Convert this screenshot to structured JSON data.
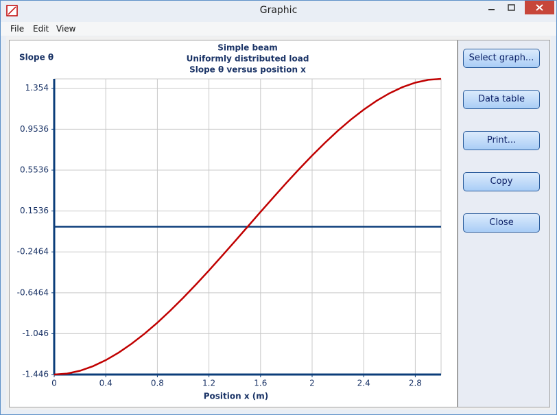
{
  "window": {
    "title": "Graphic"
  },
  "menu": [
    "File",
    "Edit",
    "View"
  ],
  "buttons": [
    "Select graph...",
    "Data table",
    "Print...",
    "Copy",
    "Close"
  ],
  "chart_data": {
    "type": "line",
    "title": [
      "Simple beam",
      "Uniformly distributed load",
      "Slope θ versus position x"
    ],
    "y_label": "Slope θ",
    "x_label": "Position x (m)",
    "x": [
      0,
      0.1,
      0.2,
      0.3,
      0.4,
      0.5,
      0.6,
      0.7,
      0.8,
      0.9,
      1.0,
      1.1,
      1.2,
      1.3,
      1.4,
      1.5,
      1.6,
      1.7,
      1.8,
      1.9,
      2.0,
      2.1,
      2.2,
      2.3,
      2.4,
      2.5,
      2.6,
      2.7,
      2.8,
      2.9,
      3.0
    ],
    "values": [
      -1.446,
      -1.4366,
      -1.4092,
      -1.365,
      -1.3055,
      -1.2318,
      -1.1452,
      -1.0471,
      -0.9387,
      -0.8213,
      -0.6962,
      -0.5647,
      -0.428,
      -0.2875,
      -0.1444,
      0,
      0.1444,
      0.2875,
      0.428,
      0.5647,
      0.6962,
      0.8213,
      0.9387,
      1.0471,
      1.1452,
      1.2318,
      1.3055,
      1.365,
      1.4092,
      1.4366,
      1.446
    ],
    "color": "#c00000",
    "axis_color": "#0b3d7a",
    "xlim": [
      0,
      3
    ],
    "ylim": [
      -1.446,
      1.446
    ],
    "xticks": [
      0,
      0.4,
      0.8,
      1.2,
      1.6,
      2,
      2.4,
      2.8
    ],
    "yticks": [
      1.354,
      0.9536,
      0.5536,
      0.1536,
      -0.2464,
      -0.6464,
      -1.046,
      -1.446
    ],
    "grid": true
  }
}
